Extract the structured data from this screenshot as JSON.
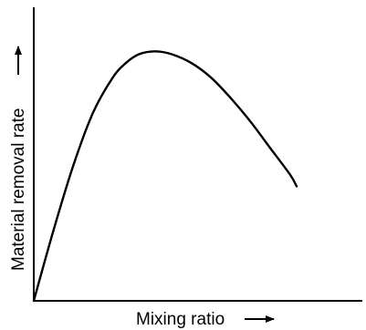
{
  "chart_data": {
    "type": "line",
    "title": "",
    "xlabel": "Mixing ratio",
    "ylabel": "Material removal rate",
    "xlim": [
      0,
      1
    ],
    "ylim": [
      0,
      1
    ],
    "x_ticks": [],
    "y_ticks": [],
    "grid": false,
    "legend": "none",
    "series": [
      {
        "x": [
          0.0,
          0.06,
          0.12,
          0.18,
          0.24,
          0.28,
          0.32,
          0.37,
          0.42,
          0.48,
          0.54,
          0.6,
          0.66,
          0.72,
          0.78,
          0.8
        ],
        "y": [
          0.0,
          0.24,
          0.46,
          0.64,
          0.76,
          0.81,
          0.84,
          0.85,
          0.84,
          0.81,
          0.76,
          0.69,
          0.61,
          0.52,
          0.43,
          0.39
        ]
      }
    ],
    "colors": {
      "axis": "#000000",
      "curve": "#000000"
    }
  }
}
